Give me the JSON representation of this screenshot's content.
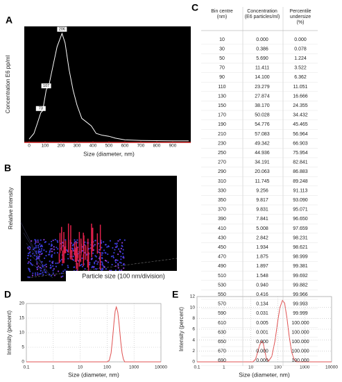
{
  "panel_labels": [
    "A",
    "B",
    "C",
    "D",
    "E"
  ],
  "chart_data": [
    {
      "type": "line",
      "y_label": "Concentration E6 pp/ml",
      "x_label": "Size (diameter, nm)",
      "background": "#000000",
      "color": "#ffffff",
      "axis_color": "#cc2222",
      "x": [
        0,
        30,
        50,
        73,
        85,
        107,
        125,
        150,
        175,
        206,
        225,
        250,
        275,
        300,
        330,
        360,
        390,
        420,
        460,
        500,
        540,
        600,
        700,
        800,
        900,
        1000
      ],
      "values": [
        1,
        4,
        9,
        15,
        16,
        27,
        30,
        40,
        50,
        57,
        52,
        38,
        27,
        19,
        12,
        10,
        8,
        4,
        3,
        2.5,
        1.5,
        0.6,
        0.3,
        0.2,
        0.1,
        0.1
      ],
      "xlim": [
        0,
        1000
      ],
      "xticks": [
        0,
        100,
        200,
        300,
        400,
        500,
        600,
        700,
        800,
        900
      ],
      "ylim": [
        0,
        60
      ],
      "log_x": false,
      "grid": false,
      "annotations": [
        {
          "text": "73",
          "x": 73,
          "y": 15
        },
        {
          "text": "107",
          "x": 107,
          "y": 27
        },
        {
          "text": "206",
          "x": 206,
          "y": 57
        }
      ]
    },
    {
      "type": "line",
      "y_label": "Intensity (percent)",
      "x_label": "Size (diameter, nm)",
      "background": "#ffffff",
      "color": "#e05050",
      "axis_color": "#888888",
      "x": [
        0.1,
        100,
        120,
        140,
        160,
        180,
        200,
        220,
        250,
        280,
        320,
        360,
        400,
        450,
        10000
      ],
      "values": [
        0,
        0,
        0.5,
        3,
        8,
        13.5,
        17.5,
        18.8,
        17,
        13,
        7,
        3,
        1,
        0,
        0
      ],
      "xlim": [
        0.1,
        10000
      ],
      "xticks": [
        0.1,
        1,
        10,
        100,
        1000,
        10000
      ],
      "ylim": [
        0,
        20
      ],
      "yticks": [
        0,
        5,
        10,
        15,
        20
      ],
      "log_x": true,
      "grid": true
    },
    {
      "type": "line",
      "y_label": "Intensity (percent)",
      "x_label": "Size (diameter, nm)",
      "background": "#ffffff",
      "color": "#e05050",
      "axis_color": "#888888",
      "x": [
        0.1,
        12,
        15,
        18,
        21,
        25,
        29,
        33,
        38,
        45,
        60,
        80,
        100,
        120,
        150,
        180,
        220,
        270,
        330,
        400,
        500,
        10000
      ],
      "values": [
        0,
        0,
        0.5,
        1.8,
        3,
        3.8,
        3.4,
        2,
        0.6,
        0.1,
        1,
        4,
        7.5,
        10,
        11.3,
        10.8,
        8,
        4.5,
        1.8,
        0.5,
        0,
        0
      ],
      "xlim": [
        0.1,
        10000
      ],
      "xticks": [
        0.1,
        1,
        10,
        100,
        1000,
        10000
      ],
      "ylim": [
        0,
        12
      ],
      "yticks": [
        0,
        2,
        4,
        6,
        8,
        10,
        12
      ],
      "log_x": true,
      "grid": true
    }
  ],
  "panel_b": {
    "y_label": "Relative intensity",
    "x_label": "Particle size (100 nm/division)"
  },
  "table": {
    "header": [
      [
        "Bin centre",
        "(nm)"
      ],
      [
        "Concentration",
        "(E6 particles/ml)"
      ],
      [
        "Percentile",
        "undersize",
        "(%)"
      ]
    ],
    "rows": [
      [
        "10",
        "0.000",
        "0.000"
      ],
      [
        "30",
        "0.386",
        "0.078"
      ],
      [
        "50",
        "5.690",
        "1.224"
      ],
      [
        "70",
        "11.411",
        "3.522"
      ],
      [
        "90",
        "14.100",
        "6.362"
      ],
      [
        "110",
        "23.279",
        "11.051"
      ],
      [
        "130",
        "27.874",
        "16.666"
      ],
      [
        "150",
        "38.170",
        "24.355"
      ],
      [
        "170",
        "50.028",
        "34.432"
      ],
      [
        "190",
        "54.776",
        "45.465"
      ],
      [
        "210",
        "57.083",
        "56.964"
      ],
      [
        "230",
        "49.342",
        "66.903"
      ],
      [
        "250",
        "44.936",
        "75.954"
      ],
      [
        "270",
        "34.191",
        "82.841"
      ],
      [
        "290",
        "20.063",
        "86.883"
      ],
      [
        "310",
        "11.745",
        "89.248"
      ],
      [
        "330",
        "9.256",
        "91.113"
      ],
      [
        "350",
        "9.817",
        "93.090"
      ],
      [
        "370",
        "9.831",
        "95.071"
      ],
      [
        "390",
        "7.841",
        "96.650"
      ],
      [
        "410",
        "5.008",
        "97.659"
      ],
      [
        "430",
        "2.842",
        "98.231"
      ],
      [
        "450",
        "1.934",
        "98.621"
      ],
      [
        "470",
        "1.875",
        "98.999"
      ],
      [
        "490",
        "1.897",
        "99.381"
      ],
      [
        "510",
        "1.548",
        "99.692"
      ],
      [
        "530",
        "0.940",
        "99.882"
      ],
      [
        "550",
        "0.416",
        "99.966"
      ],
      [
        "570",
        "0.134",
        "99.993"
      ],
      [
        "590",
        "0.031",
        "99.999"
      ],
      [
        "610",
        "0.005",
        "100.000"
      ],
      [
        "630",
        "0.001",
        "100.000"
      ],
      [
        "650",
        "0.000",
        "100.000"
      ],
      [
        "670",
        "0.000",
        "100.000"
      ],
      [
        "690",
        "0.000",
        "100.000"
      ]
    ]
  }
}
